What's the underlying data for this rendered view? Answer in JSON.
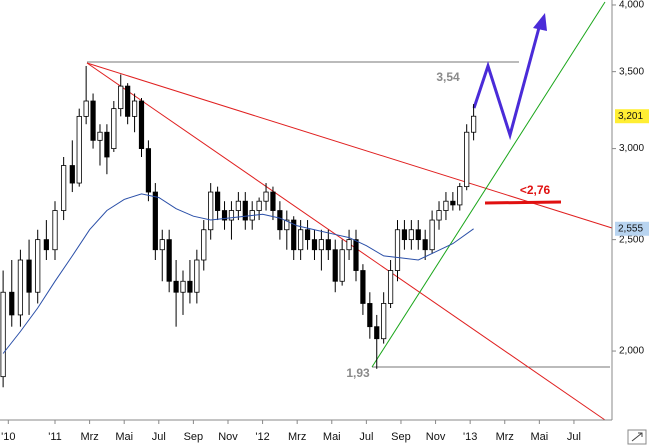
{
  "chart_data": {
    "type": "candlestick",
    "log_scale": true,
    "ylim": [
      1742,
      4040
    ],
    "yticks": [
      {
        "value": 2000,
        "label": "2,000"
      },
      {
        "value": 2500,
        "label": "2,500"
      },
      {
        "value": 3000,
        "label": "3,000"
      },
      {
        "value": 3500,
        "label": "3,500"
      },
      {
        "value": 4000,
        "label": "4,000"
      }
    ],
    "xlim": [
      -3.18,
      32.2
    ],
    "xticks": [
      {
        "value": -2.7,
        "label": "'10"
      },
      {
        "value": 0,
        "label": "'11"
      },
      {
        "value": 2,
        "label": "Mrz"
      },
      {
        "value": 4,
        "label": "Mai"
      },
      {
        "value": 6,
        "label": "Jul"
      },
      {
        "value": 8,
        "label": "Sep"
      },
      {
        "value": 10,
        "label": "Nov"
      },
      {
        "value": 12,
        "label": "'12"
      },
      {
        "value": 14,
        "label": "Mrz"
      },
      {
        "value": 16,
        "label": "Mai"
      },
      {
        "value": 18,
        "label": "Jul"
      },
      {
        "value": 20,
        "label": "Sep"
      },
      {
        "value": 22,
        "label": "Nov"
      },
      {
        "value": 24,
        "label": "'13"
      },
      {
        "value": 26,
        "label": "Mrz"
      },
      {
        "value": 28,
        "label": "Mai"
      },
      {
        "value": 30,
        "label": "Jul"
      }
    ],
    "x": [
      -3.0,
      -2.5,
      -2.0,
      -1.5,
      -1.0,
      -0.5,
      0.0,
      0.5,
      1.0,
      1.4,
      1.8,
      2.2,
      2.6,
      3.0,
      3.4,
      3.8,
      4.2,
      4.6,
      5.0,
      5.4,
      5.8,
      6.2,
      6.6,
      7.0,
      7.4,
      7.8,
      8.2,
      8.6,
      9.0,
      9.4,
      9.8,
      10.2,
      10.6,
      11.0,
      11.4,
      11.8,
      12.2,
      12.6,
      13.0,
      13.4,
      13.8,
      14.2,
      14.6,
      15.0,
      15.4,
      15.8,
      16.2,
      16.6,
      17.0,
      17.4,
      17.8,
      18.2,
      18.6,
      19.0,
      19.4,
      19.8,
      20.2,
      20.6,
      21.0,
      21.4,
      21.8,
      22.2,
      22.6,
      23.0,
      23.4,
      23.8,
      24.2
    ],
    "open": [
      1900,
      2250,
      2150,
      2400,
      2250,
      2500,
      2450,
      2650,
      2900,
      2800,
      3200,
      3300,
      3050,
      3100,
      3000,
      3250,
      3400,
      3200,
      3300,
      3000,
      2750,
      2450,
      2500,
      2300,
      2250,
      2300,
      2250,
      2400,
      2550,
      2750,
      2650,
      2600,
      2650,
      2700,
      2600,
      2650,
      2700,
      2750,
      2650,
      2550,
      2600,
      2450,
      2550,
      2500,
      2450,
      2500,
      2450,
      2300,
      2450,
      2500,
      2350,
      2200,
      2100,
      2050,
      2200,
      2350,
      2550,
      2500,
      2550,
      2500,
      2450,
      2600,
      2650,
      2700,
      2680,
      2780,
      3100
    ],
    "high": [
      2350,
      2400,
      2450,
      2500,
      2550,
      2600,
      2700,
      2950,
      3050,
      3250,
      3540,
      3350,
      3150,
      3150,
      3300,
      3480,
      3420,
      3350,
      3320,
      3050,
      2800,
      2550,
      2550,
      2400,
      2350,
      2400,
      2450,
      2600,
      2800,
      2780,
      2700,
      2700,
      2750,
      2750,
      2700,
      2720,
      2800,
      2780,
      2700,
      2650,
      2620,
      2600,
      2600,
      2550,
      2550,
      2550,
      2500,
      2500,
      2550,
      2550,
      2380,
      2250,
      2150,
      2250,
      2400,
      2600,
      2600,
      2600,
      2600,
      2550,
      2650,
      2700,
      2750,
      2750,
      2800,
      3150,
      3280
    ],
    "low": [
      1860,
      2100,
      2100,
      2150,
      2200,
      2400,
      2400,
      2600,
      2750,
      2780,
      3150,
      3000,
      2900,
      2850,
      2980,
      3200,
      3150,
      3100,
      2950,
      2700,
      2400,
      2300,
      2250,
      2100,
      2150,
      2200,
      2200,
      2350,
      2500,
      2600,
      2550,
      2500,
      2600,
      2550,
      2550,
      2600,
      2650,
      2600,
      2500,
      2450,
      2400,
      2400,
      2450,
      2400,
      2350,
      2400,
      2250,
      2280,
      2400,
      2300,
      2150,
      2050,
      1930,
      2030,
      2180,
      2300,
      2450,
      2450,
      2450,
      2400,
      2430,
      2550,
      2600,
      2650,
      2650,
      2760,
      3050
    ],
    "close": [
      2250,
      2150,
      2400,
      2250,
      2500,
      2450,
      2650,
      2900,
      2800,
      3200,
      3300,
      3050,
      3100,
      2950,
      3250,
      3400,
      3200,
      3300,
      3000,
      2750,
      2450,
      2500,
      2300,
      2250,
      2300,
      2250,
      2400,
      2550,
      2750,
      2650,
      2600,
      2650,
      2700,
      2600,
      2650,
      2700,
      2750,
      2650,
      2550,
      2600,
      2450,
      2550,
      2500,
      2450,
      2500,
      2450,
      2300,
      2450,
      2500,
      2350,
      2200,
      2100,
      2050,
      2200,
      2350,
      2550,
      2500,
      2550,
      2500,
      2450,
      2600,
      2650,
      2700,
      2680,
      2780,
      3100,
      3201
    ],
    "moving_average": {
      "color": "#2a4fa8",
      "x": [
        -3,
        -2,
        -1,
        0,
        1,
        2,
        3,
        4,
        5,
        6,
        7,
        8,
        9,
        10,
        11,
        12,
        13,
        14,
        15,
        16,
        17,
        18,
        19,
        20,
        21,
        22,
        23,
        24.2
      ],
      "values": [
        1990,
        2080,
        2180,
        2300,
        2420,
        2550,
        2650,
        2710,
        2740,
        2720,
        2660,
        2620,
        2600,
        2610,
        2620,
        2630,
        2610,
        2570,
        2550,
        2530,
        2510,
        2470,
        2420,
        2410,
        2400,
        2440,
        2480,
        2555
      ]
    },
    "last_price": {
      "value": 3201,
      "label": "3,201"
    },
    "last_average": {
      "value": 2555,
      "label": "2,555"
    },
    "annotations": [
      "3,54",
      "1,93",
      "<2,76"
    ]
  }
}
